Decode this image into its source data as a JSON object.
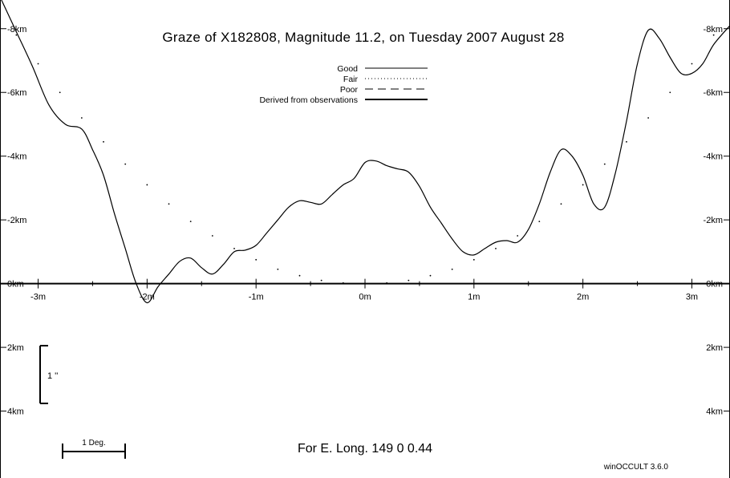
{
  "chart_data": {
    "type": "line",
    "title": "Graze of  X182808,  Magnitude  11.2,  on Tuesday  2007  August  28",
    "x_ticks": [
      "-3m",
      "-2m",
      "-1m",
      "0m",
      "1m",
      "2m",
      "3m"
    ],
    "x_tick_values": [
      -3,
      -2,
      -1,
      0,
      1,
      2,
      3
    ],
    "y_ticks_left": [
      "-8km",
      "-6km",
      "-4km",
      "-2km",
      "0km",
      "2km",
      "4km"
    ],
    "y_ticks_right": [
      "-8km",
      "-6km",
      "-4km",
      "-2km",
      "0km",
      "2km",
      "4km"
    ],
    "y_tick_values": [
      -8,
      -6,
      -4,
      -2,
      0,
      2,
      4
    ],
    "xlim": [
      -3.35,
      3.35
    ],
    "ylim": [
      -8.9,
      6.1
    ],
    "legend": {
      "placement": "top-center",
      "entries": [
        {
          "label": "Good",
          "style": "solid"
        },
        {
          "label": "Fair",
          "style": "dotted"
        },
        {
          "label": "Poor",
          "style": "dashed"
        },
        {
          "label": "Derived from observations",
          "style": "solid-thick"
        }
      ]
    },
    "series": [
      {
        "style": "solid",
        "x": [
          -3.35,
          -3.2,
          -3.05,
          -2.9,
          -2.75,
          -2.6,
          -2.5,
          -2.4,
          -2.3,
          -2.2,
          -2.1,
          -2.0,
          -1.9,
          -1.8,
          -1.7,
          -1.6,
          -1.5,
          -1.4,
          -1.3,
          -1.2,
          -1.1,
          -1.0,
          -0.9,
          -0.8,
          -0.7,
          -0.6,
          -0.5,
          -0.4,
          -0.3,
          -0.2,
          -0.1,
          0.0,
          0.1,
          0.2,
          0.3,
          0.4,
          0.5,
          0.6,
          0.7,
          0.8,
          0.9,
          1.0,
          1.1,
          1.2,
          1.3,
          1.4,
          1.5,
          1.6,
          1.7,
          1.8,
          1.9,
          2.0,
          2.1,
          2.2,
          2.3,
          2.4,
          2.5,
          2.6,
          2.7,
          2.8,
          2.9,
          3.0,
          3.1,
          3.2,
          3.35
        ],
        "y": [
          -9.0,
          -7.9,
          -6.8,
          -5.6,
          -5.0,
          -4.85,
          -4.2,
          -3.4,
          -2.2,
          -1.1,
          0.0,
          0.6,
          0.1,
          -0.3,
          -0.7,
          -0.8,
          -0.5,
          -0.3,
          -0.6,
          -1.0,
          -1.05,
          -1.2,
          -1.6,
          -2.0,
          -2.4,
          -2.6,
          -2.55,
          -2.5,
          -2.8,
          -3.1,
          -3.3,
          -3.8,
          -3.85,
          -3.7,
          -3.6,
          -3.5,
          -3.05,
          -2.4,
          -1.9,
          -1.4,
          -1.0,
          -0.9,
          -1.1,
          -1.3,
          -1.35,
          -1.3,
          -1.7,
          -2.5,
          -3.5,
          -4.2,
          -4.0,
          -3.4,
          -2.5,
          -2.4,
          -3.5,
          -5.1,
          -6.9,
          -7.95,
          -7.7,
          -7.1,
          -6.6,
          -6.6,
          -6.9,
          -7.5,
          -8.1
        ]
      },
      {
        "style": "dotted",
        "x": [
          -3.35,
          -3.2,
          -3.0,
          -2.8,
          -2.6,
          -2.4,
          -2.2,
          -2.0,
          -1.8,
          -1.6,
          -1.4,
          -1.2,
          -1.0,
          -0.8,
          -0.6,
          -0.4,
          -0.2,
          0.0,
          0.2,
          0.4,
          0.6,
          0.8,
          1.0,
          1.2,
          1.4,
          1.6,
          1.8,
          2.0,
          2.2,
          2.4,
          2.6,
          2.8,
          3.0,
          3.2,
          3.35
        ],
        "y": [
          -8.6,
          -7.8,
          -6.9,
          -6.0,
          -5.2,
          -4.45,
          -3.75,
          -3.1,
          -2.5,
          -1.95,
          -1.5,
          -1.1,
          -0.75,
          -0.45,
          -0.25,
          -0.1,
          -0.02,
          0.0,
          -0.02,
          -0.1,
          -0.25,
          -0.45,
          -0.75,
          -1.1,
          -1.5,
          -1.95,
          -2.5,
          -3.1,
          -3.75,
          -4.45,
          -5.2,
          -6.0,
          -6.9,
          -7.8,
          -8.6
        ]
      }
    ],
    "scale_bar_label": "1 ''",
    "degree_bar_label": "1 Deg.",
    "grid": false
  },
  "footer": {
    "longitude": "For E. Long.  149  0  0.44",
    "software": "winOCCULT 3.6.0"
  }
}
